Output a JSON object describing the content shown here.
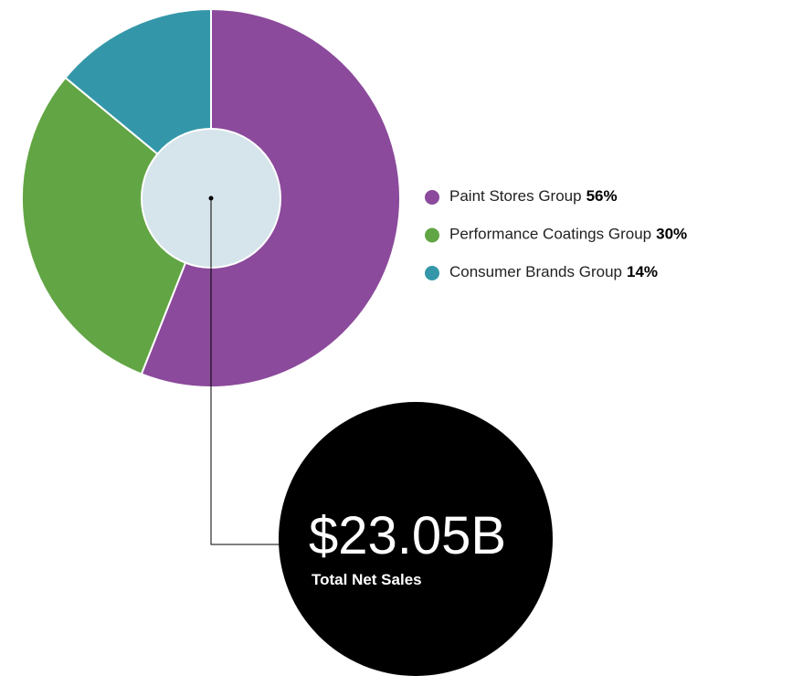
{
  "chart_data": {
    "type": "pie",
    "categories": [
      "Paint Stores Group",
      "Performance Coatings Group",
      "Consumer Brands Group"
    ],
    "values": [
      56,
      30,
      14
    ],
    "value_labels": [
      "56%",
      "30%",
      "14%"
    ],
    "colors": [
      "#8b4a9b",
      "#62a544",
      "#3497a9"
    ],
    "total": "$23.05B",
    "total_label": "Total Net Sales"
  }
}
